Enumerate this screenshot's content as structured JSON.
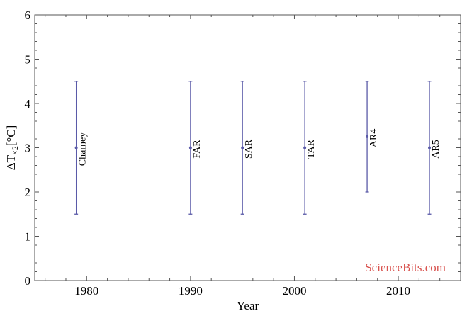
{
  "chart_data": {
    "type": "scatter",
    "title": "",
    "xlabel": "Year",
    "ylabel_main": "ΔT",
    "ylabel_sub": "×2",
    "ylabel_unit": "[°C]",
    "xlim": [
      1975,
      2016
    ],
    "ylim": [
      0,
      6
    ],
    "xticks": [
      1980,
      1990,
      2000,
      2010
    ],
    "yticks": [
      0,
      1,
      2,
      3,
      4,
      5,
      6
    ],
    "grid": false,
    "series": [
      {
        "points": [
          {
            "label": "Charney",
            "x": 1979,
            "y": 3.0,
            "low": 1.5,
            "high": 4.5
          },
          {
            "label": "FAR",
            "x": 1990,
            "y": 3.0,
            "low": 1.5,
            "high": 4.5
          },
          {
            "label": "SAR",
            "x": 1995,
            "y": 3.0,
            "low": 1.5,
            "high": 4.5
          },
          {
            "label": "TAR",
            "x": 2001,
            "y": 3.0,
            "low": 1.5,
            "high": 4.5
          },
          {
            "label": "AR4",
            "x": 2007,
            "y": 3.25,
            "low": 2.0,
            "high": 4.5
          },
          {
            "label": "AR5",
            "x": 2013,
            "y": 3.0,
            "low": 1.5,
            "high": 4.5
          }
        ]
      }
    ],
    "colors": {
      "errorbar": "#5a5aa8",
      "watermark": "#d9534f"
    },
    "watermark": "ScienceBits.com"
  }
}
